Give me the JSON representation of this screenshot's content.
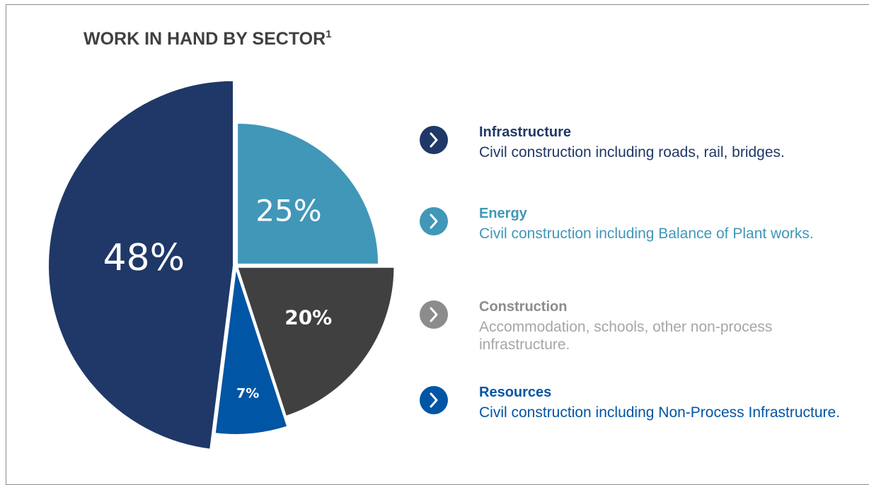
{
  "chart_data": {
    "type": "pie",
    "title": "WORK IN HAND BY SECTOR",
    "title_footnote": "1",
    "categories": [
      "Infrastructure",
      "Energy",
      "Construction",
      "Resources"
    ],
    "values": [
      48,
      25,
      20,
      7
    ],
    "value_labels": [
      "48%",
      "25%",
      "20%",
      "7%"
    ],
    "colors": [
      "#1f3868",
      "#4097b8",
      "#404040",
      "#0055a5"
    ],
    "legend_colors": [
      "#1f3868",
      "#4097b8",
      "#8c8c8c",
      "#0055a5"
    ],
    "descriptions": [
      "Civil construction including roads, rail, bridges.",
      "Civil construction including Balance of Plant works.",
      "Accommodation, schools, other non-process infrastructure.",
      "Civil construction including Non-Process Infrastructure."
    ],
    "legend": "right"
  }
}
